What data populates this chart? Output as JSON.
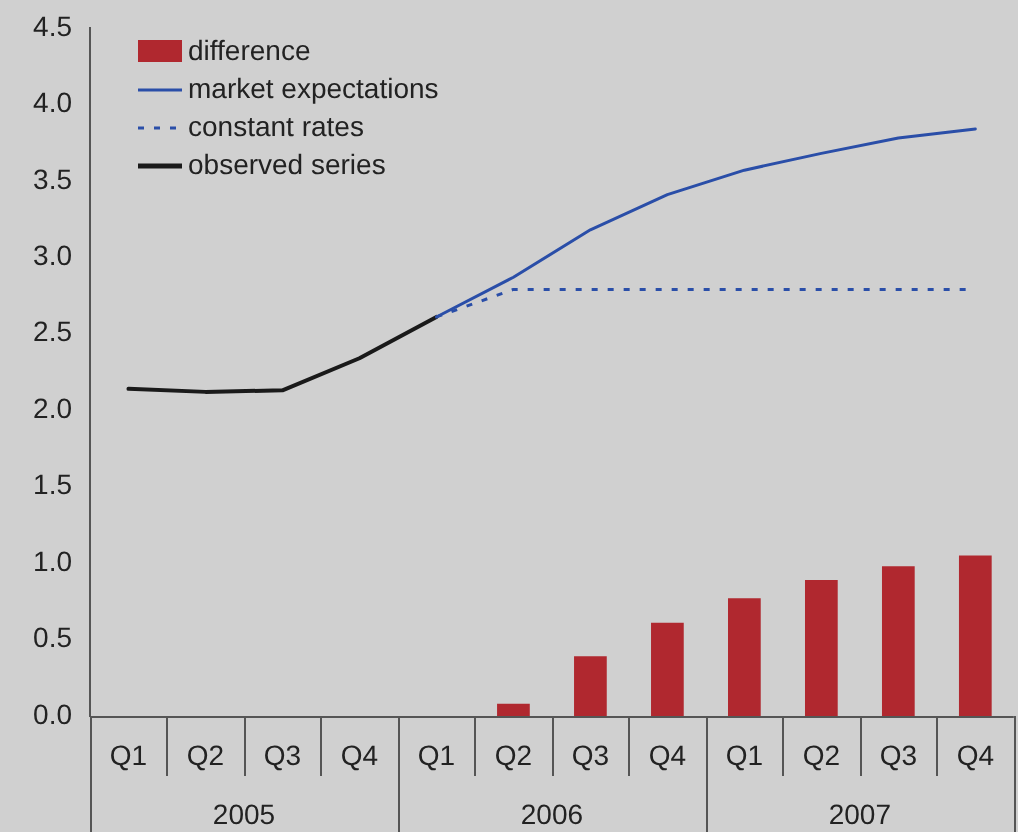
{
  "chart_data": {
    "type": "bar",
    "categories": [
      "Q1",
      "Q2",
      "Q3",
      "Q4",
      "Q1",
      "Q2",
      "Q3",
      "Q4",
      "Q1",
      "Q2",
      "Q3",
      "Q4"
    ],
    "series": [
      {
        "name": "difference",
        "color": "#b0282f",
        "values": [
          null,
          null,
          null,
          null,
          null,
          0.08,
          0.39,
          0.61,
          0.77,
          0.89,
          0.98,
          1.05
        ]
      },
      {
        "name": "market expectations",
        "type": "line",
        "color": "#2a4ea8",
        "line_style": "solid",
        "values": [
          null,
          null,
          null,
          null,
          2.61,
          2.87,
          3.18,
          3.41,
          3.57,
          3.68,
          3.78,
          3.84
        ]
      },
      {
        "name": "constant rates",
        "type": "line",
        "color": "#2a4ea8",
        "line_style": "dotted",
        "values": [
          null,
          null,
          null,
          null,
          2.61,
          2.79,
          2.79,
          2.79,
          2.79,
          2.79,
          2.79,
          2.79
        ]
      },
      {
        "name": "observed series",
        "type": "line",
        "color": "#1a1a1a",
        "line_style": "solid",
        "values": [
          2.14,
          2.12,
          2.13,
          2.34,
          2.61,
          null,
          null,
          null,
          null,
          null,
          null,
          null
        ]
      }
    ],
    "annotations": [
      "2005",
      "2006",
      "2007"
    ],
    "ylim": [
      0,
      4.5
    ],
    "yticks": [
      {
        "value": 0,
        "label": "0.0"
      },
      0.5,
      {
        "value": 1,
        "label": "1.0"
      },
      1.5,
      {
        "value": 2,
        "label": "2.0"
      },
      2.5,
      {
        "value": 3,
        "label": "3.0"
      },
      3.5,
      {
        "value": 4,
        "label": "4.0"
      },
      4.5
    ],
    "grid": false,
    "legend": "top left"
  }
}
